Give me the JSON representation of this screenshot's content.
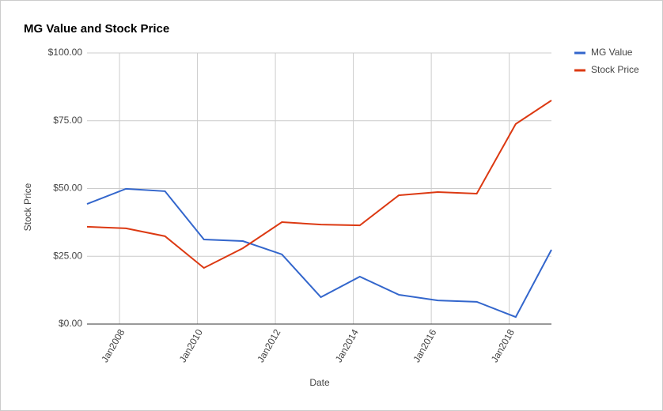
{
  "chart_data": {
    "type": "line",
    "title": "MG Value and Stock Price",
    "x_label": "Date",
    "y_label": "Stock Price",
    "x": [
      "2007-03",
      "2008-03",
      "2009-03",
      "2010-03",
      "2011-03",
      "2012-03",
      "2013-03",
      "2014-03",
      "2015-03",
      "2016-03",
      "2017-03",
      "2018-03",
      "2019-02"
    ],
    "series": [
      {
        "name": "MG Value",
        "color": "#3366cc",
        "values": [
          44.3,
          49.9,
          49.0,
          31.2,
          30.6,
          25.7,
          9.9,
          17.5,
          10.8,
          8.7,
          8.2,
          2.6,
          27.4
        ]
      },
      {
        "name": "Stock Price",
        "color": "#dc3912",
        "values": [
          35.9,
          35.3,
          32.4,
          20.7,
          28.0,
          37.6,
          36.7,
          36.4,
          47.5,
          48.7,
          48.1,
          73.8,
          82.5
        ]
      }
    ],
    "xlim": [
      "2007-03",
      "2019-02"
    ],
    "xticks": [
      {
        "value": "2008-01",
        "label": "Jan2008"
      },
      {
        "value": "2010-01",
        "label": "Jan2010"
      },
      {
        "value": "2012-01",
        "label": "Jan2012"
      },
      {
        "value": "2014-01",
        "label": "Jan2014"
      },
      {
        "value": "2016-01",
        "label": "Jan2016"
      },
      {
        "value": "2018-01",
        "label": "Jan2018"
      }
    ],
    "ylim": [
      0,
      100
    ],
    "yticks": [
      {
        "value": 0,
        "label": "$0.00"
      },
      {
        "value": 25,
        "label": "$25.00"
      },
      {
        "value": 50,
        "label": "$50.00"
      },
      {
        "value": 75,
        "label": "$75.00"
      },
      {
        "value": 100,
        "label": "$100.00"
      }
    ],
    "grid": true,
    "legend": "right"
  }
}
